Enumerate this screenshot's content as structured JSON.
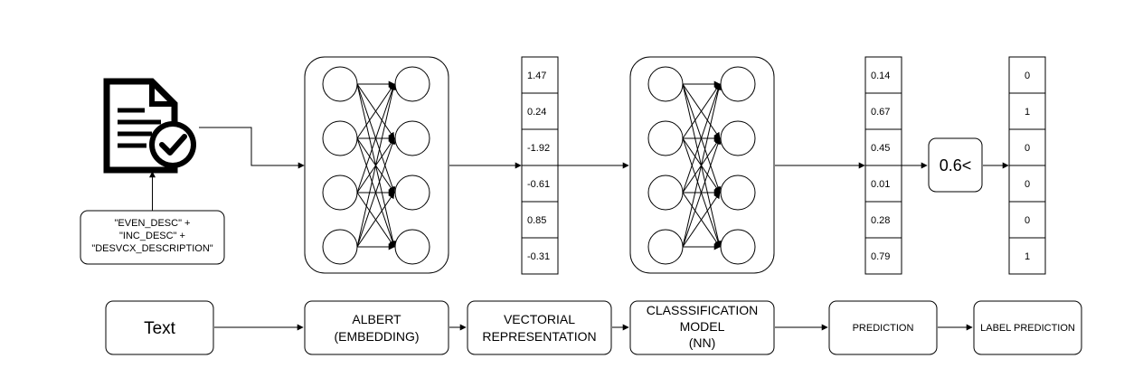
{
  "source_note": {
    "line1": "\"EVEN_DESC\" +",
    "line2": "\"INC_DESC\" +",
    "line3": "\"DESVCX_DESCRIPTION\""
  },
  "embedding_vector": [
    "1.47",
    "0.24",
    "-1.92",
    "-0.61",
    "0.85",
    "-0.31"
  ],
  "probability_vector": [
    "0.14",
    "0.67",
    "0.45",
    "0.01",
    "0.28",
    "0.79"
  ],
  "threshold_label": "0.6<",
  "label_vector": [
    "0",
    "1",
    "0",
    "0",
    "0",
    "1"
  ],
  "pipeline": {
    "text": "Text",
    "albert_line1": "ALBERT",
    "albert_line2": "(EMBEDDING)",
    "vectorial_line1": "VECTORIAL",
    "vectorial_line2": "REPRESENTATION",
    "classification_line1": "CLASSSIFICATION",
    "classification_line2": "MODEL",
    "classification_line3": "(NN)",
    "prediction": "PREDICTION",
    "label_prediction": "LABEL PREDICTION"
  },
  "icons": {
    "document": "document-check-icon",
    "network_1": "neural-network-icon",
    "network_2": "neural-network-icon"
  }
}
